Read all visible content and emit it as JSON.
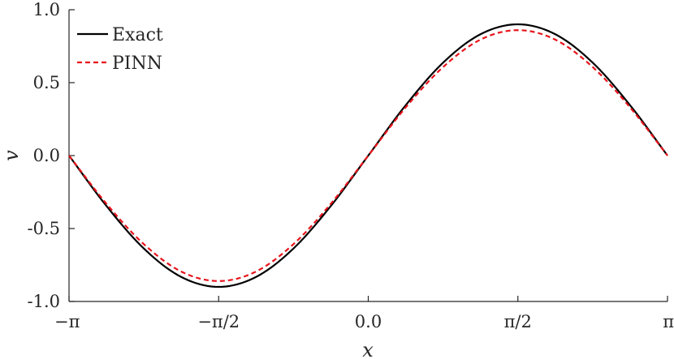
{
  "chart_data": {
    "type": "line",
    "title": "",
    "xlabel": "x",
    "ylabel": "v",
    "xlim": [
      -3.14159,
      3.14159
    ],
    "ylim": [
      -1.0,
      1.0
    ],
    "grid": false,
    "legend_position": "top-left",
    "x_ticks": [
      {
        "value": -3.14159,
        "label": "−π"
      },
      {
        "value": -1.5708,
        "label": "−π/2"
      },
      {
        "value": 0.0,
        "label": "0.0"
      },
      {
        "value": 1.5708,
        "label": "π/2"
      },
      {
        "value": 3.14159,
        "label": "π"
      }
    ],
    "y_ticks": [
      {
        "value": 1.0,
        "label": "1.0"
      },
      {
        "value": 0.5,
        "label": "0.5"
      },
      {
        "value": 0.0,
        "label": "0.0"
      },
      {
        "value": -0.5,
        "label": "-0.5"
      },
      {
        "value": -1.0,
        "label": "-1.0"
      }
    ],
    "series": [
      {
        "name": "Exact",
        "color": "#000000",
        "style": "solid",
        "x": [
          -3.14159,
          -2.74889,
          -2.35619,
          -1.9635,
          -1.5708,
          -1.1781,
          -0.7854,
          -0.3927,
          0.0,
          0.3927,
          0.7854,
          1.1781,
          1.5708,
          1.9635,
          2.35619,
          2.74889,
          3.14159
        ],
        "y": [
          0.0,
          -0.345,
          -0.637,
          -0.832,
          -0.9,
          -0.832,
          -0.637,
          -0.345,
          0.0,
          0.345,
          0.637,
          0.832,
          0.9,
          0.832,
          0.637,
          0.345,
          0.0
        ]
      },
      {
        "name": "PINN",
        "color": "#e8141b",
        "style": "dashed",
        "x": [
          -3.14159,
          -2.74889,
          -2.35619,
          -1.9635,
          -1.5708,
          -1.1781,
          -0.7854,
          -0.3927,
          0.0,
          0.3927,
          0.7854,
          1.1781,
          1.5708,
          1.9635,
          2.35619,
          2.74889,
          3.14159
        ],
        "y": [
          0.0,
          -0.33,
          -0.607,
          -0.795,
          -0.86,
          -0.795,
          -0.607,
          -0.33,
          0.0,
          0.33,
          0.607,
          0.795,
          0.86,
          0.795,
          0.607,
          0.33,
          0.0
        ]
      }
    ]
  }
}
